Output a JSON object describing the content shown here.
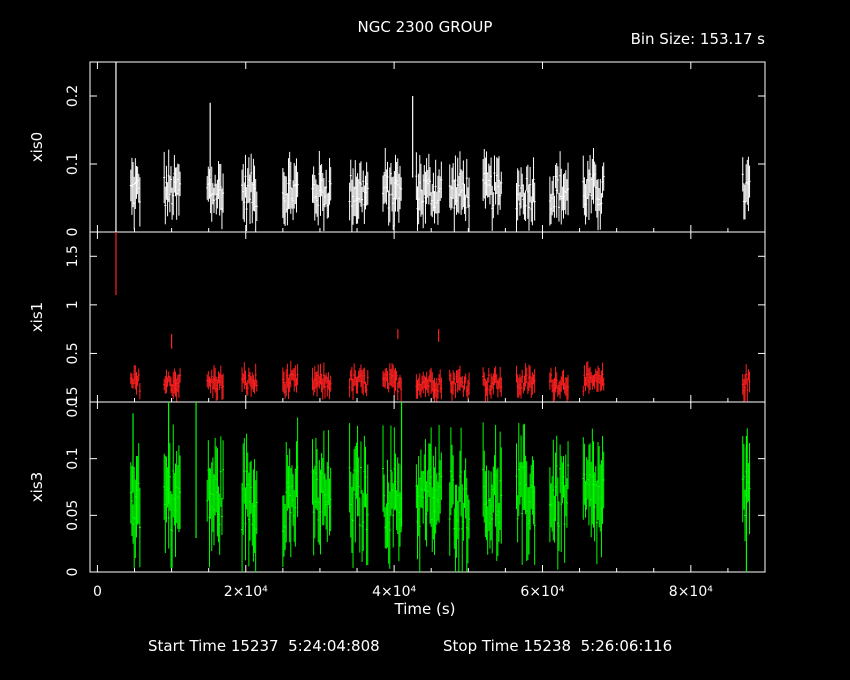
{
  "header": {
    "title": "NGC 2300 GROUP",
    "bin_size": "Bin Size: 153.17 s"
  },
  "footer": {
    "start_time": "Start Time 15237  5:24:04:808",
    "stop_time": "Stop Time 15238  5:26:06:116"
  },
  "colors": {
    "background": "#000000",
    "axes": "#ffffff",
    "xis0": "#ffffff",
    "xis1": "#ff2020",
    "xis3": "#00ff00"
  },
  "chart_data": {
    "type": "line",
    "title": "NGC 2300 GROUP",
    "xlabel": "Time (s)",
    "x_ticks": [
      {
        "value": 0,
        "label": "0"
      },
      {
        "value": 20000,
        "label": "2×10⁴"
      },
      {
        "value": 40000,
        "label": "4×10⁴"
      },
      {
        "value": 60000,
        "label": "6×10⁴"
      },
      {
        "value": 80000,
        "label": "8×10⁴"
      }
    ],
    "xlim": [
      -1000,
      90000
    ],
    "orbit_segments": [
      [
        4500,
        5800
      ],
      [
        9000,
        11200
      ],
      [
        14800,
        17000
      ],
      [
        19500,
        21500
      ],
      [
        25000,
        27000
      ],
      [
        29000,
        31500
      ],
      [
        34000,
        36500
      ],
      [
        38500,
        41000
      ],
      [
        43000,
        46500
      ],
      [
        47500,
        50200
      ],
      [
        52000,
        54500
      ],
      [
        56500,
        59000
      ],
      [
        61000,
        63500
      ],
      [
        65500,
        68300
      ],
      [
        87000,
        88000
      ]
    ],
    "panels": [
      {
        "name": "xis0",
        "ylabel": "xis0",
        "ylim": [
          0,
          0.25
        ],
        "y_ticks": [
          {
            "value": 0,
            "label": "0"
          },
          {
            "value": 0.1,
            "label": "0.1"
          },
          {
            "value": 0.2,
            "label": "0.2"
          }
        ],
        "typical_rate": 0.06,
        "spikes": [
          {
            "x": 2500,
            "y_low": 0.0,
            "y_high": 0.25
          },
          {
            "x": 15200,
            "y_low": 0.08,
            "y_high": 0.19
          },
          {
            "x": 42500,
            "y_low": 0.08,
            "y_high": 0.2
          }
        ]
      },
      {
        "name": "xis1",
        "ylabel": "xis1",
        "ylim": [
          0,
          1.75
        ],
        "y_ticks": [
          {
            "value": 0,
            "label": "0"
          },
          {
            "value": 0.5,
            "label": "0.5"
          },
          {
            "value": 1,
            "label": "1"
          },
          {
            "value": 1.5,
            "label": "1.5"
          }
        ],
        "typical_rate": 0.2,
        "spikes": [
          {
            "x": 2500,
            "y_low": 1.1,
            "y_high": 1.75
          },
          {
            "x": 10000,
            "y_low": 0.55,
            "y_high": 0.7
          },
          {
            "x": 40500,
            "y_low": 0.65,
            "y_high": 0.75
          },
          {
            "x": 46000,
            "y_low": 0.62,
            "y_high": 0.75
          }
        ]
      },
      {
        "name": "xis3",
        "ylabel": "xis3",
        "ylim": [
          0,
          0.15
        ],
        "y_ticks": [
          {
            "value": 0,
            "label": "0"
          },
          {
            "value": 0.05,
            "label": "0.05"
          },
          {
            "value": 0.1,
            "label": "0.1"
          },
          {
            "value": 0.15,
            "label": "0.15"
          }
        ],
        "typical_rate": 0.065,
        "spikes": [
          {
            "x": 4800,
            "y_low": 0.07,
            "y_high": 0.14
          },
          {
            "x": 9600,
            "y_low": 0.06,
            "y_high": 0.15
          },
          {
            "x": 13300,
            "y_low": 0.03,
            "y_high": 0.15
          },
          {
            "x": 41000,
            "y_low": 0.04,
            "y_high": 0.15
          },
          {
            "x": 87500,
            "y_low": 0.0,
            "y_high": 0.12
          }
        ]
      }
    ]
  }
}
